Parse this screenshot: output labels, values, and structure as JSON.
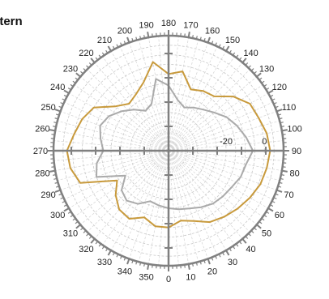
{
  "title": "attern",
  "chart_data": {
    "type": "polar-line",
    "title": "attern",
    "angle_ticks": [
      "0",
      "10",
      "20",
      "30",
      "40",
      "50",
      "60",
      "70",
      "80",
      "90",
      "100",
      "110",
      "120",
      "130",
      "140",
      "150",
      "160",
      "170",
      "180",
      "190",
      "200",
      "210",
      "220",
      "230",
      "240",
      "250",
      "260",
      "270",
      "280",
      "290",
      "300",
      "310",
      "320",
      "330",
      "340",
      "350"
    ],
    "radial_tick_labels": [
      "-20",
      "0"
    ],
    "radial_range": [
      -50,
      10
    ],
    "series": [
      {
        "color": "#c89a3c",
        "angles": [
          0,
          10,
          20,
          30,
          40,
          50,
          60,
          70,
          80,
          90,
          100,
          110,
          120,
          130,
          140,
          150,
          160,
          170,
          180,
          190,
          200,
          210,
          220,
          230,
          240,
          250,
          260,
          270,
          280,
          290,
          300,
          310,
          320,
          330,
          340,
          350
        ],
        "values": [
          -10,
          -13,
          -11,
          -7,
          -5,
          -3,
          -1,
          1,
          2,
          3,
          2,
          0,
          -1,
          -6,
          -13,
          -14,
          -16,
          -8,
          -10,
          -3,
          -12,
          -16,
          -18,
          -14,
          -5,
          -2,
          0,
          3,
          2,
          -1,
          -19,
          -14,
          -10,
          -9,
          -13,
          -10
        ]
      },
      {
        "color": "#aaaaaa",
        "angles": [
          0,
          10,
          20,
          30,
          40,
          50,
          60,
          70,
          80,
          90,
          100,
          110,
          120,
          130,
          140,
          150,
          160,
          170,
          180,
          190,
          200,
          210,
          220,
          230,
          240,
          250,
          260,
          270,
          280,
          290,
          300,
          310,
          320,
          330,
          340,
          350
        ],
        "values": [
          -20,
          -19,
          -18,
          -16,
          -14,
          -13,
          -12,
          -10,
          -9,
          -6,
          -9,
          -12,
          -15,
          -19,
          -22,
          -24,
          -26,
          -23,
          -16,
          -12,
          -24,
          -26,
          -22,
          -18,
          -14,
          -12,
          -14,
          -16,
          -12,
          -10,
          -24,
          -18,
          -16,
          -18,
          -22,
          -21
        ]
      }
    ],
    "grid": true
  }
}
